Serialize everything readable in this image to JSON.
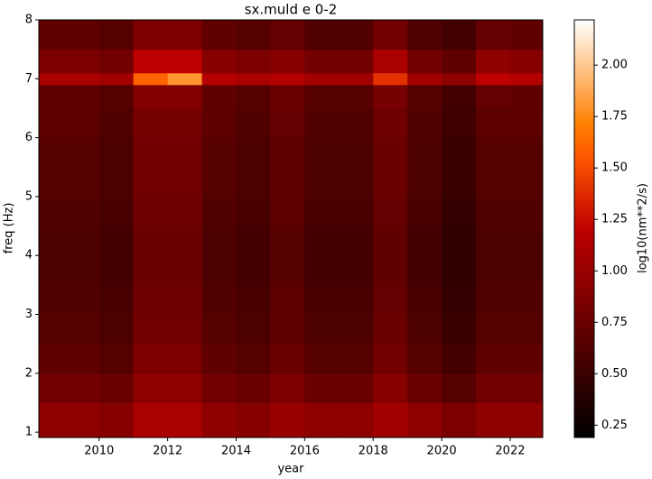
{
  "chart_data": {
    "type": "heatmap",
    "title": "sx.muld e 0-2",
    "xlabel": "year",
    "ylabel": "freq (Hz)",
    "colorbar_label": "log10(nm**2/s)",
    "colormap": "gist_heat",
    "xlim": [
      2008.24,
      2022.95
    ],
    "ylim": [
      0.91,
      8
    ],
    "clim": [
      0.19,
      2.22
    ],
    "xticks": [
      2010,
      2012,
      2014,
      2016,
      2018,
      2020,
      2022
    ],
    "yticks": [
      1,
      2,
      3,
      4,
      5,
      6,
      7,
      8
    ],
    "cticks": [
      0.25,
      {
        "value": 0.5,
        "label": "0.50"
      },
      0.75,
      {
        "value": 1,
        "label": "1.00"
      },
      1.25,
      {
        "value": 1.5,
        "label": "1.50"
      },
      1.75,
      {
        "value": 2,
        "label": "2.00"
      }
    ],
    "xbins": [
      2008.24,
      2009,
      2010,
      2011,
      2012,
      2013,
      2014,
      2015,
      2016,
      2017,
      2018,
      2019,
      2020,
      2021,
      2022,
      2022.95
    ],
    "ybins": [
      0.91,
      1.5,
      2,
      2.5,
      3,
      3.5,
      4,
      4.5,
      5,
      5.5,
      6,
      6.5,
      6.9,
      7.1,
      7.5,
      8
    ],
    "z": [
      [
        0.95,
        0.95,
        0.9,
        1.1,
        1.1,
        0.95,
        0.9,
        1.0,
        0.95,
        0.95,
        1.05,
        0.95,
        0.85,
        0.95,
        0.95
      ],
      [
        0.8,
        0.8,
        0.75,
        0.95,
        0.95,
        0.8,
        0.75,
        0.85,
        0.75,
        0.75,
        0.9,
        0.75,
        0.65,
        0.8,
        0.8
      ],
      [
        0.7,
        0.7,
        0.65,
        0.85,
        0.85,
        0.7,
        0.65,
        0.75,
        0.65,
        0.65,
        0.8,
        0.65,
        0.55,
        0.7,
        0.7
      ],
      [
        0.65,
        0.65,
        0.6,
        0.8,
        0.8,
        0.65,
        0.6,
        0.7,
        0.6,
        0.6,
        0.75,
        0.6,
        0.5,
        0.65,
        0.65
      ],
      [
        0.62,
        0.62,
        0.58,
        0.78,
        0.78,
        0.62,
        0.58,
        0.68,
        0.58,
        0.58,
        0.72,
        0.58,
        0.48,
        0.62,
        0.62
      ],
      [
        0.6,
        0.6,
        0.55,
        0.75,
        0.75,
        0.6,
        0.55,
        0.65,
        0.55,
        0.55,
        0.7,
        0.55,
        0.45,
        0.6,
        0.6
      ],
      [
        0.6,
        0.6,
        0.55,
        0.75,
        0.75,
        0.6,
        0.55,
        0.65,
        0.55,
        0.55,
        0.7,
        0.55,
        0.45,
        0.6,
        0.6
      ],
      [
        0.62,
        0.62,
        0.58,
        0.78,
        0.78,
        0.62,
        0.58,
        0.68,
        0.58,
        0.58,
        0.72,
        0.58,
        0.48,
        0.62,
        0.62
      ],
      [
        0.65,
        0.65,
        0.6,
        0.8,
        0.8,
        0.65,
        0.6,
        0.7,
        0.6,
        0.6,
        0.75,
        0.6,
        0.5,
        0.65,
        0.65
      ],
      [
        0.65,
        0.65,
        0.6,
        0.8,
        0.8,
        0.65,
        0.6,
        0.7,
        0.6,
        0.6,
        0.75,
        0.6,
        0.5,
        0.65,
        0.65
      ],
      [
        0.68,
        0.68,
        0.62,
        0.82,
        0.82,
        0.68,
        0.62,
        0.72,
        0.62,
        0.62,
        0.78,
        0.62,
        0.52,
        0.68,
        0.68
      ],
      [
        0.7,
        0.7,
        0.65,
        0.88,
        0.88,
        0.7,
        0.65,
        0.75,
        0.65,
        0.65,
        0.82,
        0.65,
        0.55,
        0.72,
        0.7
      ],
      [
        1.1,
        1.1,
        1.05,
        1.6,
        1.8,
        1.15,
        1.1,
        1.15,
        1.05,
        1.05,
        1.4,
        1.05,
        0.95,
        1.2,
        1.15
      ],
      [
        0.85,
        0.85,
        0.8,
        1.2,
        1.2,
        0.9,
        0.85,
        0.9,
        0.8,
        0.8,
        1.1,
        0.8,
        0.7,
        0.95,
        0.9
      ],
      [
        0.7,
        0.7,
        0.65,
        0.85,
        0.85,
        0.7,
        0.65,
        0.72,
        0.62,
        0.62,
        0.8,
        0.62,
        0.55,
        0.72,
        0.7
      ]
    ]
  }
}
